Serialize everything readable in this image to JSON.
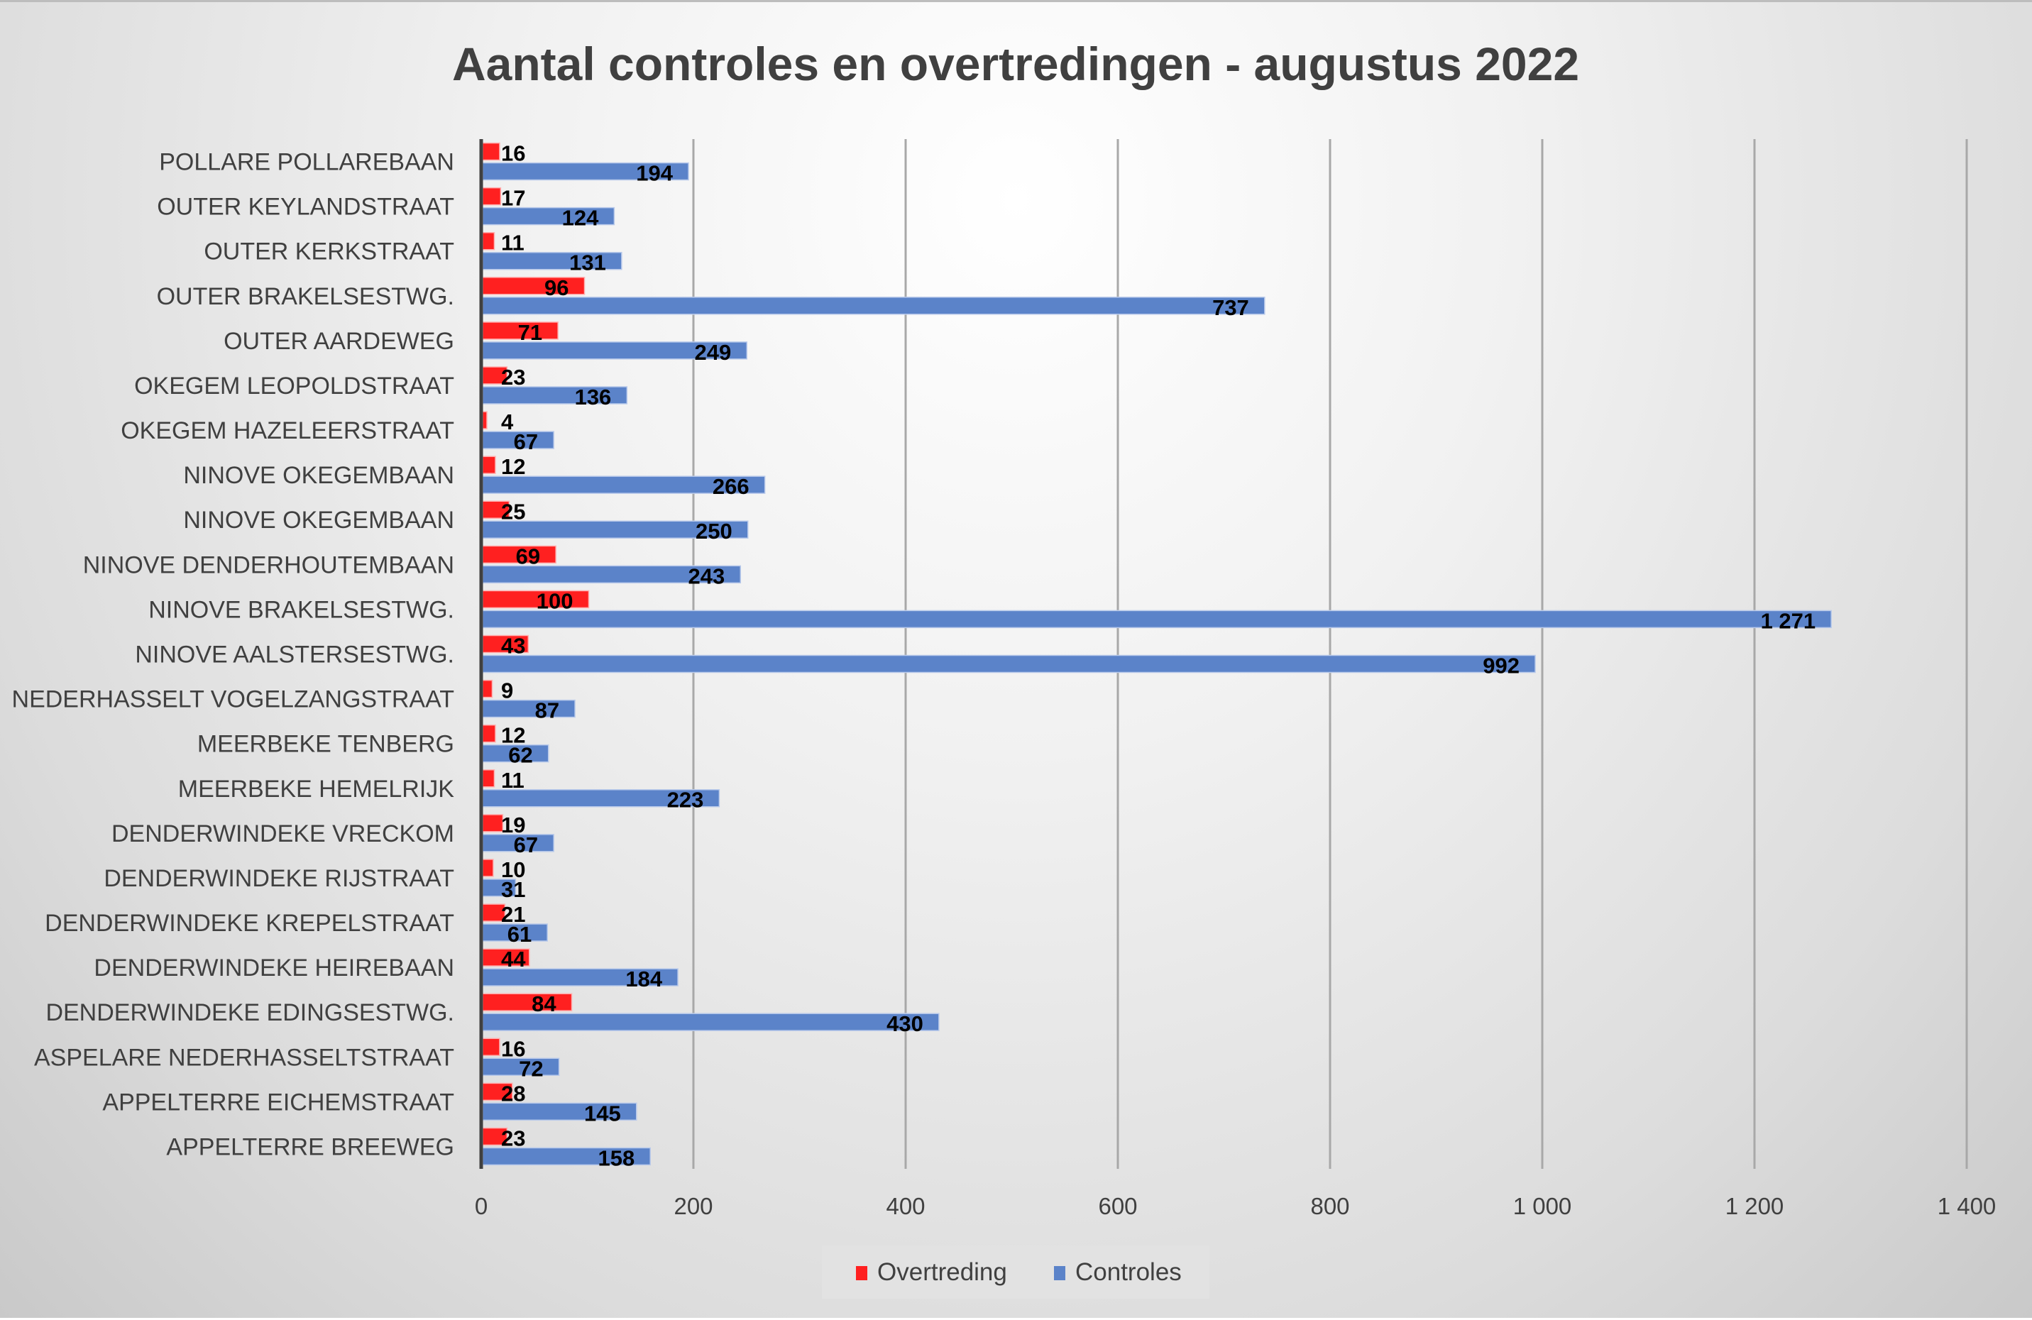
{
  "chart_data": {
    "type": "bar",
    "orientation": "horizontal",
    "title": "Aantal controles en overtredingen - augustus 2022",
    "xlabel": "",
    "ylabel": "",
    "xlim": [
      0,
      1400
    ],
    "x_ticks": [
      0,
      200,
      400,
      600,
      800,
      1000,
      1200,
      1400
    ],
    "x_tick_labels": [
      "0",
      "200",
      "400",
      "600",
      "800",
      "1 000",
      "1 200",
      "1 400"
    ],
    "grid": "vertical major gridlines",
    "legend_position": "bottom",
    "categories": [
      "POLLARE POLLAREBAAN",
      "OUTER KEYLANDSTRAAT",
      "OUTER KERKSTRAAT",
      "OUTER BRAKELSESTWG.",
      "OUTER AARDEWEG",
      "OKEGEM LEOPOLDSTRAAT",
      "OKEGEM HAZELEERSTRAAT",
      "NINOVE OKEGEMBAAN",
      "NINOVE OKEGEMBAAN",
      "NINOVE DENDERHOUTEMBAAN",
      "NINOVE BRAKELSESTWG.",
      "NINOVE AALSTERSESTWG.",
      "NEDERHASSELT VOGELZANGSTRAAT",
      "MEERBEKE TENBERG",
      "MEERBEKE HEMELRIJK",
      "DENDERWINDEKE VRECKOM",
      "DENDERWINDEKE RIJSTRAAT",
      "DENDERWINDEKE KREPELSTRAAT",
      "DENDERWINDEKE HEIREBAAN",
      "DENDERWINDEKE EDINGSESTWG.",
      "ASPELARE NEDERHASSELTSTRAAT",
      "APPELTERRE EICHEMSTRAAT",
      "APPELTERRE BREEWEG"
    ],
    "series": [
      {
        "name": "Overtreding",
        "color": "#ff2020",
        "values": [
          16,
          17,
          11,
          96,
          71,
          23,
          4,
          12,
          25,
          69,
          100,
          43,
          9,
          12,
          11,
          19,
          10,
          21,
          44,
          84,
          16,
          28,
          23
        ],
        "labels": [
          "16",
          "17",
          "11",
          "96",
          "71",
          "23",
          "4",
          "12",
          "25",
          "69",
          "100",
          "43",
          "9",
          "12",
          "11",
          "19",
          "10",
          "21",
          "44",
          "84",
          "16",
          "28",
          "23"
        ]
      },
      {
        "name": "Controles",
        "color": "#5b83c9",
        "values": [
          194,
          124,
          131,
          737,
          249,
          136,
          67,
          266,
          250,
          243,
          1271,
          992,
          87,
          62,
          223,
          67,
          31,
          61,
          184,
          430,
          72,
          145,
          158
        ],
        "labels": [
          "194",
          "124",
          "131",
          "737",
          "249",
          "136",
          "67",
          "266",
          "250",
          "243",
          "1 271",
          "992",
          "87",
          "62",
          "223",
          "67",
          "31",
          "61",
          "184",
          "430",
          "72",
          "145",
          "158"
        ]
      }
    ]
  }
}
